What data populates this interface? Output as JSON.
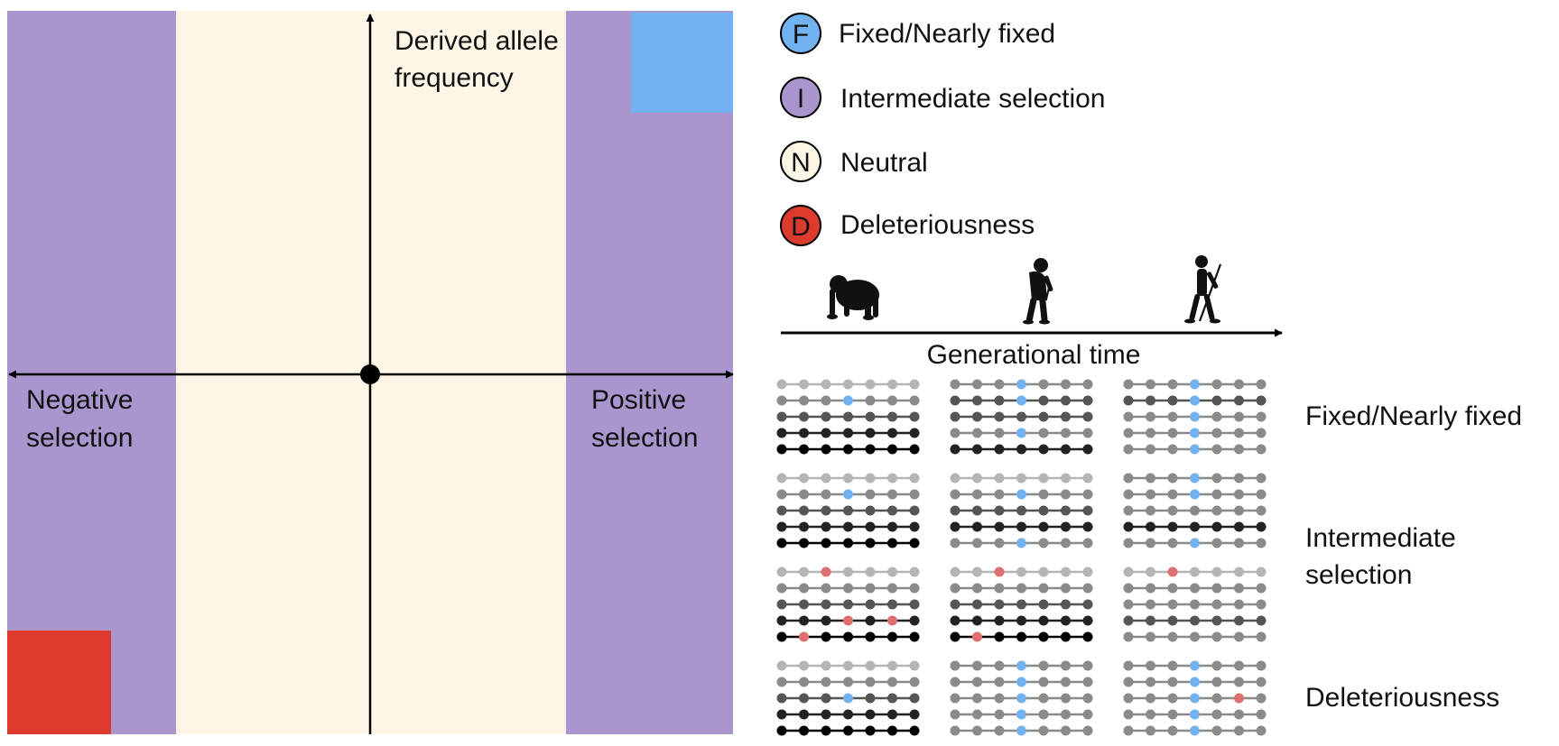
{
  "colors": {
    "fixed": "#72b2f0",
    "intermediate": "#a996ce",
    "neutral": "#fdf6e6",
    "deleterious": "#dd3a2e",
    "axis": "#000000"
  },
  "quadrant": {
    "y_axis_label_line1": "Derived allele",
    "y_axis_label_line2": "frequency",
    "left_label_line1": "Negative",
    "left_label_line2": "selection",
    "right_label_line1": "Positive",
    "right_label_line2": "selection"
  },
  "legend": [
    {
      "letter": "F",
      "label": "Fixed/Nearly fixed",
      "color_key": "fixed"
    },
    {
      "letter": "I",
      "label": "Intermediate selection",
      "color_key": "intermediate"
    },
    {
      "letter": "N",
      "label": "Neutral",
      "color_key": "neutral"
    },
    {
      "letter": "D",
      "label": "Deleteriousness",
      "color_key": "deleterious"
    }
  ],
  "timeline": {
    "label": "Generational time",
    "figures": [
      "chimpanzee-icon",
      "early-hominin-icon",
      "human-with-spear-icon"
    ]
  },
  "panel_labels": {
    "fixed": "Fixed/Nearly fixed",
    "intermediate_line1": "Intermediate",
    "intermediate_line2": "selection",
    "deleterious": "Deleteriousness"
  }
}
